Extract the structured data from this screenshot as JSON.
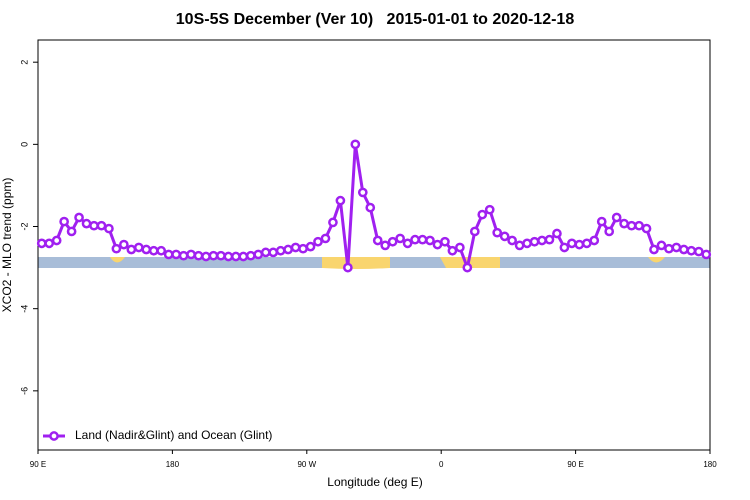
{
  "chart_data": {
    "type": "line",
    "title": "10S-5S December (Ver 10)   2015-01-01 to 2020-12-18",
    "x_label": "Longitude (deg E)",
    "y_label": "XCO2 - MLO trend (ppm)",
    "x": [
      92.5,
      97.5,
      102.5,
      107.5,
      112.5,
      117.5,
      122.5,
      127.5,
      132.5,
      137.5,
      142.5,
      147.5,
      152.5,
      157.5,
      162.5,
      167.5,
      172.5,
      177.5,
      182.5,
      187.5,
      192.5,
      197.5,
      202.5,
      207.5,
      212.5,
      217.5,
      222.5,
      227.5,
      232.5,
      237.5,
      242.5,
      247.5,
      252.5,
      257.5,
      262.5,
      267.5,
      272.5,
      277.5,
      282.5,
      287.5,
      292.5,
      297.5,
      302.5,
      307.5,
      312.5,
      317.5,
      322.5,
      327.5,
      332.5,
      337.5,
      342.5,
      347.5,
      352.5,
      357.5,
      362.5,
      367.5,
      372.5,
      377.5,
      382.5,
      387.5,
      392.5,
      397.5,
      402.5,
      407.5,
      412.5,
      417.5,
      422.5,
      427.5,
      432.5,
      437.5,
      442.5,
      447.5,
      452.5,
      457.5,
      462.5,
      467.5,
      472.5,
      477.5,
      482.5,
      487.5,
      492.5,
      497.5,
      502.5,
      507.5,
      512.5,
      517.5,
      522.5,
      527.5,
      532.5,
      537.5
    ],
    "series": [
      {
        "name": "Land (Nadir&Glint) and Ocean (Glint)",
        "color": "#a020f0",
        "values": [
          -2.41,
          -2.41,
          -2.34,
          -1.88,
          -2.12,
          -1.78,
          -1.93,
          -1.98,
          -1.98,
          -2.05,
          -2.54,
          -2.44,
          -2.56,
          -2.51,
          -2.56,
          -2.59,
          -2.59,
          -2.68,
          -2.68,
          -2.71,
          -2.68,
          -2.71,
          -2.73,
          -2.71,
          -2.71,
          -2.73,
          -2.73,
          -2.73,
          -2.71,
          -2.68,
          -2.63,
          -2.63,
          -2.59,
          -2.56,
          -2.51,
          -2.54,
          -2.49,
          -2.37,
          -2.29,
          -1.9,
          -1.37,
          -3.0,
          0.0,
          -1.17,
          -1.54,
          -2.34,
          -2.46,
          -2.37,
          -2.29,
          -2.41,
          -2.32,
          -2.32,
          -2.34,
          -2.44,
          -2.37,
          -2.59,
          -2.51,
          -3.0,
          -2.12,
          -1.71,
          -1.59,
          -2.15,
          -2.24,
          -2.34,
          -2.46,
          -2.41,
          -2.37,
          -2.34,
          -2.32,
          -2.17,
          -2.51,
          -2.41,
          -2.44,
          -2.41,
          -2.34,
          -1.88,
          -2.12,
          -1.78,
          -1.93,
          -1.98,
          -1.98,
          -2.05,
          -2.56,
          -2.46,
          -2.54,
          -2.51,
          -2.56,
          -2.59,
          -2.61,
          -2.68
        ]
      }
    ],
    "xlim": [
      90,
      540
    ],
    "xticks": [
      {
        "value": 90,
        "label": "90 E"
      },
      180,
      {
        "value": 270,
        "label": "90 W"
      },
      {
        "value": 360,
        "label": "0"
      },
      {
        "value": 450,
        "label": "90 E"
      },
      {
        "value": 540,
        "label": "180"
      }
    ],
    "ylim": [
      -7.44,
      2.54
    ],
    "yticks": [
      2,
      0,
      -2,
      -4,
      -6
    ],
    "grid": false,
    "legend": "bottom-left"
  }
}
